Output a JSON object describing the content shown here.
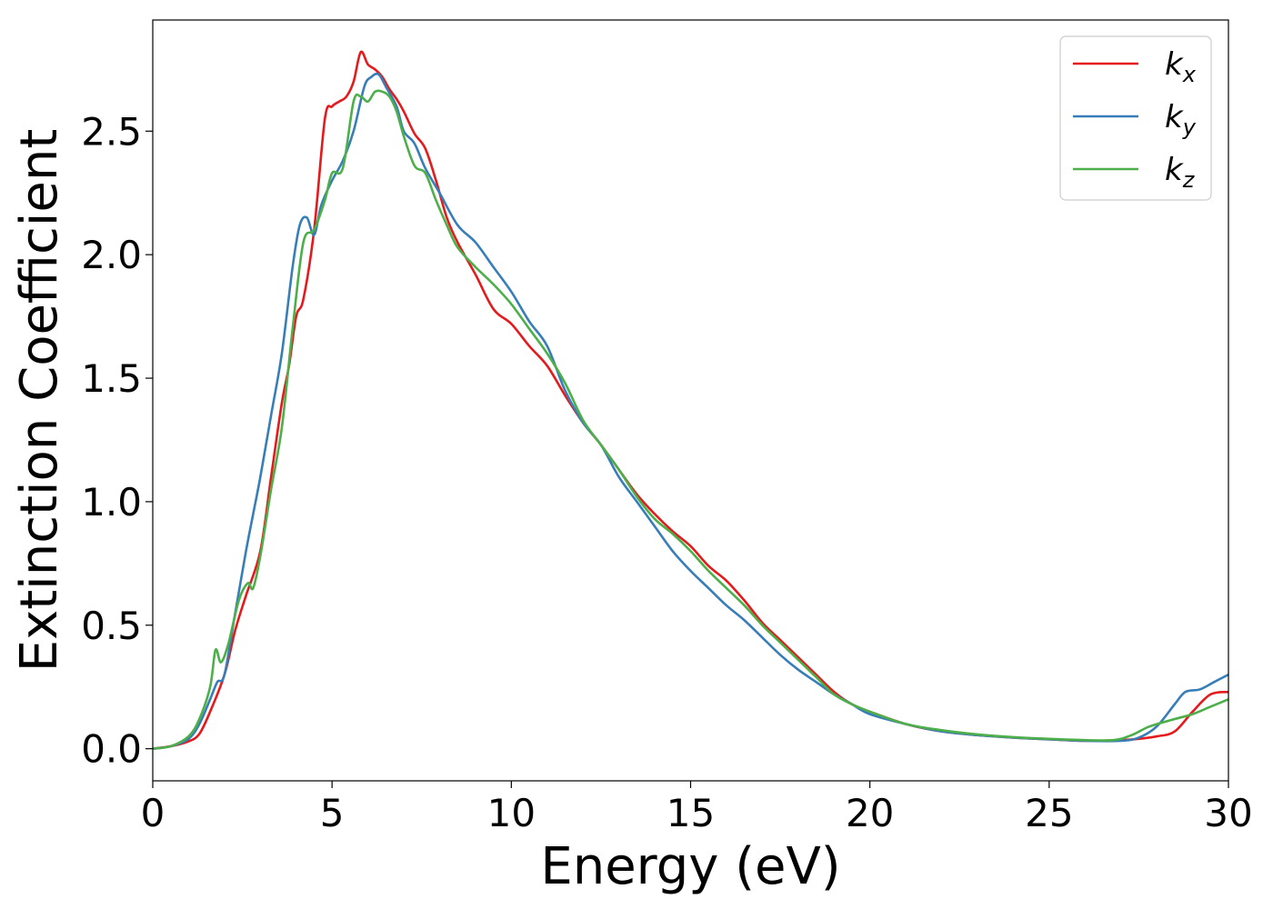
{
  "chart_data": {
    "type": "line",
    "xlabel": "Energy (eV)",
    "ylabel": "Extinction Coefficient",
    "xlim": [
      0,
      30
    ],
    "ylim": [
      -0.13,
      2.95
    ],
    "xticks": [
      0,
      5,
      10,
      15,
      20,
      25,
      30
    ],
    "xtick_labels": [
      "0",
      "5",
      "10",
      "15",
      "20",
      "25",
      "30"
    ],
    "yticks": [
      0.0,
      0.5,
      1.0,
      1.5,
      2.0,
      2.5
    ],
    "ytick_labels": [
      "0.0",
      "0.5",
      "1.0",
      "1.5",
      "2.0",
      "2.5"
    ],
    "grid": false,
    "legend_position": "top-right",
    "series": [
      {
        "name": "k",
        "subscript": "x",
        "color": "#e41a1c",
        "x": [
          0,
          0.5,
          1.0,
          1.3,
          1.6,
          2.0,
          2.3,
          2.6,
          3.0,
          3.3,
          3.6,
          3.8,
          4.0,
          4.2,
          4.5,
          4.8,
          5.0,
          5.2,
          5.4,
          5.6,
          5.8,
          6.0,
          6.2,
          6.4,
          6.6,
          6.8,
          7.0,
          7.3,
          7.6,
          7.9,
          8.2,
          8.5,
          9.0,
          9.5,
          10.0,
          10.5,
          11.0,
          11.5,
          12.0,
          12.5,
          13.0,
          13.5,
          14.0,
          14.5,
          15.0,
          15.5,
          16.0,
          16.5,
          17.0,
          17.5,
          18.0,
          18.5,
          19.0,
          19.5,
          20.0,
          21.0,
          22.0,
          23.0,
          24.0,
          25.0,
          26.0,
          27.0,
          27.5,
          28.0,
          28.5,
          29.0,
          29.5,
          30.0
        ],
        "y": [
          0.0,
          0.01,
          0.03,
          0.06,
          0.15,
          0.3,
          0.48,
          0.62,
          0.8,
          1.1,
          1.4,
          1.55,
          1.75,
          1.82,
          2.1,
          2.55,
          2.6,
          2.62,
          2.64,
          2.7,
          2.82,
          2.77,
          2.75,
          2.72,
          2.67,
          2.63,
          2.58,
          2.49,
          2.43,
          2.3,
          2.15,
          2.05,
          1.92,
          1.78,
          1.72,
          1.63,
          1.55,
          1.43,
          1.32,
          1.23,
          1.13,
          1.03,
          0.95,
          0.88,
          0.82,
          0.74,
          0.68,
          0.6,
          0.51,
          0.44,
          0.37,
          0.3,
          0.23,
          0.18,
          0.15,
          0.1,
          0.07,
          0.055,
          0.045,
          0.038,
          0.032,
          0.035,
          0.04,
          0.05,
          0.07,
          0.15,
          0.22,
          0.23
        ]
      },
      {
        "name": "k",
        "subscript": "y",
        "color": "#377eb8",
        "x": [
          0,
          0.5,
          1.0,
          1.3,
          1.6,
          1.8,
          2.0,
          2.3,
          2.6,
          2.8,
          3.0,
          3.3,
          3.6,
          3.9,
          4.1,
          4.3,
          4.5,
          4.7,
          5.0,
          5.3,
          5.6,
          5.9,
          6.1,
          6.3,
          6.5,
          6.8,
          7.0,
          7.3,
          7.6,
          8.0,
          8.5,
          9.0,
          9.5,
          10.0,
          10.5,
          11.0,
          11.5,
          12.0,
          12.5,
          13.0,
          13.5,
          14.0,
          14.5,
          15.0,
          15.5,
          16.0,
          16.5,
          17.0,
          17.5,
          18.0,
          18.5,
          19.0,
          19.5,
          20.0,
          21.0,
          22.0,
          23.0,
          24.0,
          25.0,
          26.0,
          27.0,
          27.5,
          28.0,
          28.5,
          28.8,
          29.2,
          29.6,
          30.0
        ],
        "y": [
          0.0,
          0.01,
          0.04,
          0.1,
          0.2,
          0.27,
          0.3,
          0.55,
          0.8,
          0.95,
          1.1,
          1.35,
          1.6,
          1.95,
          2.12,
          2.15,
          2.08,
          2.2,
          2.3,
          2.38,
          2.5,
          2.68,
          2.72,
          2.73,
          2.68,
          2.6,
          2.5,
          2.45,
          2.35,
          2.25,
          2.12,
          2.05,
          1.95,
          1.85,
          1.73,
          1.63,
          1.45,
          1.32,
          1.23,
          1.1,
          1.0,
          0.9,
          0.8,
          0.72,
          0.65,
          0.58,
          0.52,
          0.45,
          0.38,
          0.32,
          0.27,
          0.22,
          0.18,
          0.14,
          0.1,
          0.07,
          0.055,
          0.045,
          0.038,
          0.032,
          0.032,
          0.045,
          0.09,
          0.18,
          0.23,
          0.24,
          0.27,
          0.3
        ]
      },
      {
        "name": "k",
        "subscript": "z",
        "color": "#4daf4a",
        "x": [
          0,
          0.5,
          1.0,
          1.3,
          1.6,
          1.75,
          1.9,
          2.1,
          2.4,
          2.65,
          2.8,
          3.0,
          3.3,
          3.6,
          3.9,
          4.2,
          4.5,
          4.8,
          5.0,
          5.3,
          5.6,
          5.8,
          6.0,
          6.2,
          6.4,
          6.6,
          6.8,
          7.0,
          7.3,
          7.6,
          7.9,
          8.2,
          8.5,
          9.0,
          9.5,
          10.0,
          10.5,
          11.0,
          11.5,
          12.0,
          12.5,
          13.0,
          13.5,
          14.0,
          14.5,
          15.0,
          15.5,
          16.0,
          16.5,
          17.0,
          17.5,
          18.0,
          18.5,
          19.0,
          19.5,
          20.0,
          21.0,
          22.0,
          23.0,
          24.0,
          25.0,
          26.0,
          26.8,
          27.3,
          27.8,
          28.5,
          29.0,
          29.5,
          30.0
        ],
        "y": [
          0.0,
          0.01,
          0.05,
          0.12,
          0.25,
          0.4,
          0.35,
          0.42,
          0.6,
          0.67,
          0.65,
          0.78,
          1.05,
          1.3,
          1.7,
          2.05,
          2.1,
          2.22,
          2.33,
          2.35,
          2.62,
          2.64,
          2.62,
          2.66,
          2.66,
          2.64,
          2.58,
          2.48,
          2.36,
          2.33,
          2.22,
          2.12,
          2.03,
          1.95,
          1.88,
          1.8,
          1.7,
          1.6,
          1.48,
          1.33,
          1.23,
          1.13,
          1.02,
          0.93,
          0.87,
          0.8,
          0.72,
          0.65,
          0.58,
          0.5,
          0.43,
          0.36,
          0.29,
          0.22,
          0.18,
          0.15,
          0.1,
          0.075,
          0.058,
          0.047,
          0.04,
          0.035,
          0.035,
          0.055,
          0.09,
          0.12,
          0.14,
          0.17,
          0.2
        ]
      }
    ]
  }
}
